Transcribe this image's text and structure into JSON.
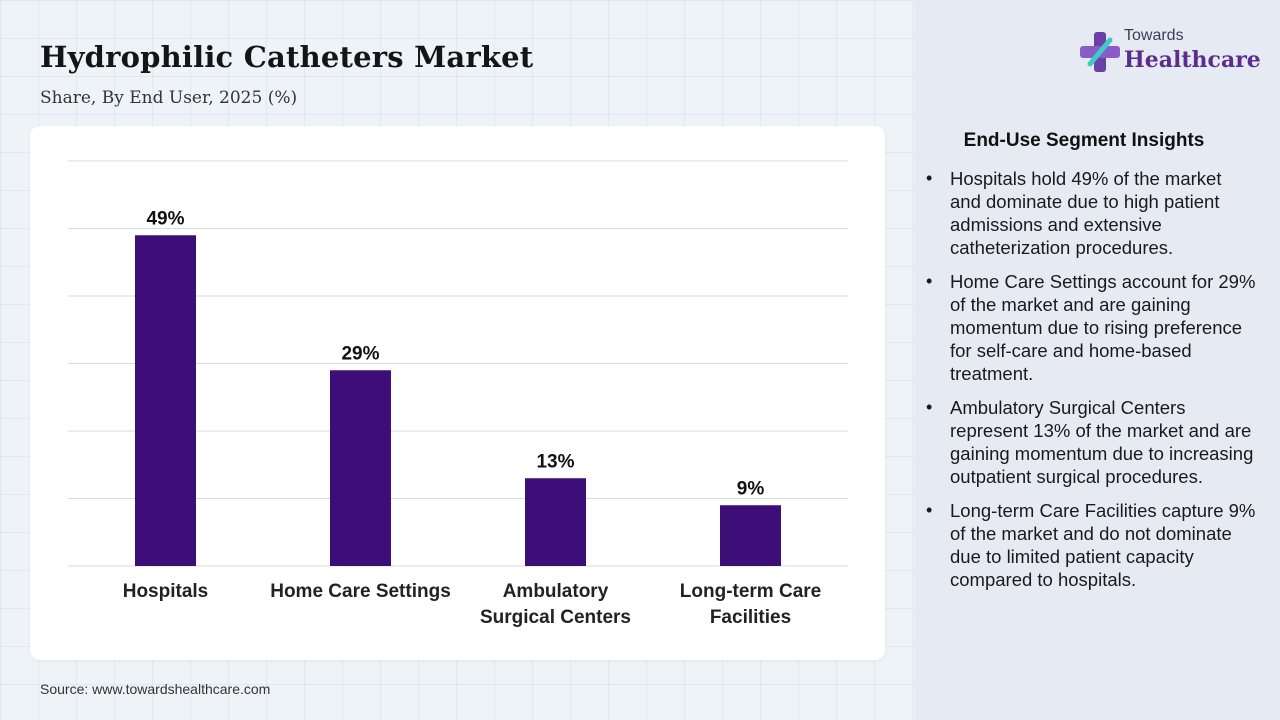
{
  "title": "Hydrophilic Catheters Market",
  "subtitle": "Share, By End User, 2025 (%)",
  "source": "Source: www.towardshealthcare.com",
  "logo": {
    "line1": "Towards",
    "line2": "Healthcare"
  },
  "colors": {
    "bar": "#3e0e78",
    "accent": "#5b2d8e",
    "grid": "#d9d9d9"
  },
  "chart_data": {
    "type": "bar",
    "categories": [
      "Hospitals",
      "Home Care Settings",
      "Ambulatory Surgical Centers",
      "Long-term Care Facilities"
    ],
    "category_lines": [
      [
        "Hospitals"
      ],
      [
        "Home Care Settings"
      ],
      [
        "Ambulatory",
        "Surgical Centers"
      ],
      [
        "Long-term Care",
        "Facilities"
      ]
    ],
    "values": [
      49,
      29,
      13,
      9
    ],
    "labels": [
      "49%",
      "29%",
      "13%",
      "9%"
    ],
    "ylim": [
      0,
      60
    ],
    "grid": true,
    "xlabel": "",
    "ylabel": ""
  },
  "insights": {
    "title": "End-Use Segment Insights",
    "items": [
      "Hospitals hold 49% of the market and dominate due to high patient admissions and extensive catheterization procedures.",
      "Home Care Settings account for 29% of the market and are gaining momentum due to rising preference for self-care and home-based treatment.",
      "Ambulatory Surgical Centers represent 13% of the market and are gaining momentum due to increasing outpatient surgical procedures.",
      "Long-term Care Facilities capture 9% of the market and do not dominate due to limited patient capacity compared to hospitals."
    ]
  }
}
